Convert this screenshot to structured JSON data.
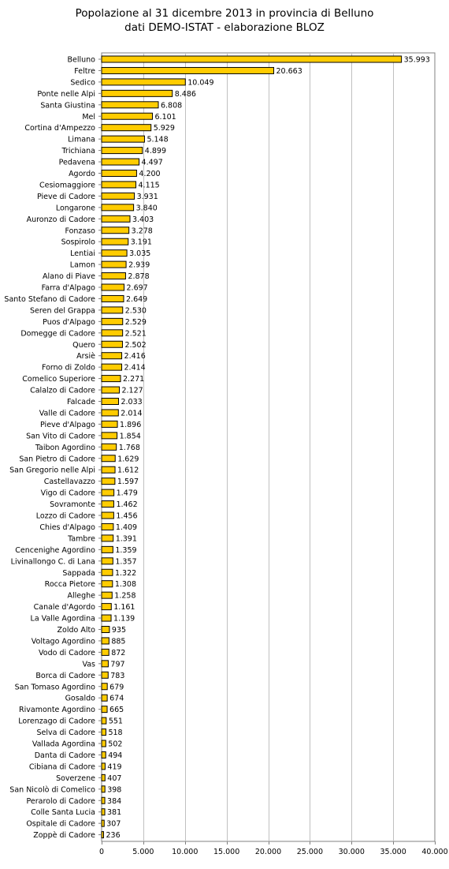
{
  "chart_data": {
    "type": "bar",
    "orientation": "horizontal",
    "title": "Popolazione al 31 dicembre 2013 in provincia di Belluno",
    "subtitle": "dati DEMO-ISTAT - elaborazione BLOZ",
    "xlabel": "",
    "ylabel": "",
    "xlim": [
      0,
      40000
    ],
    "xticks": [
      0,
      5000,
      10000,
      15000,
      20000,
      25000,
      30000,
      35000,
      40000
    ],
    "xtick_labels": [
      "0",
      "5.000",
      "10.000",
      "15.000",
      "20.000",
      "25.000",
      "30.000",
      "35.000",
      "40.000"
    ],
    "grid": true,
    "legend": "none",
    "bar_color": "#FFCC00",
    "bar_border_color": "#000000",
    "gridline_color": "#c0c0c0",
    "categories": [
      "Belluno",
      "Feltre",
      "Sedico",
      "Ponte nelle Alpi",
      "Santa Giustina",
      "Mel",
      "Cortina d'Ampezzo",
      "Limana",
      "Trichiana",
      "Pedavena",
      "Agordo",
      "Cesiomaggiore",
      "Pieve di Cadore",
      "Longarone",
      "Auronzo di Cadore",
      "Fonzaso",
      "Sospirolo",
      "Lentiai",
      "Lamon",
      "Alano di Piave",
      "Farra d'Alpago",
      "Santo Stefano di Cadore",
      "Seren del Grappa",
      "Puos d'Alpago",
      "Domegge di Cadore",
      "Quero",
      "Arsiè",
      "Forno di Zoldo",
      "Comelico Superiore",
      "Calalzo di Cadore",
      "Falcade",
      "Valle di Cadore",
      "Pieve d'Alpago",
      "San Vito di Cadore",
      "Taibon Agordino",
      "San Pietro di Cadore",
      "San Gregorio nelle Alpi",
      "Castellavazzo",
      "Vigo di Cadore",
      "Sovramonte",
      "Lozzo di Cadore",
      "Chies d'Alpago",
      "Tambre",
      "Cencenighe Agordino",
      "Livinallongo C. di Lana",
      "Sappada",
      "Rocca Pietore",
      "Alleghe",
      "Canale d'Agordo",
      "La Valle Agordina",
      "Zoldo Alto",
      "Voltago Agordino",
      "Vodo di Cadore",
      "Vas",
      "Borca di Cadore",
      "San Tomaso Agordino",
      "Gosaldo",
      "Rivamonte Agordino",
      "Lorenzago di Cadore",
      "Selva di Cadore",
      "Vallada Agordina",
      "Danta di Cadore",
      "Cibiana di Cadore",
      "Soverzene",
      "San Nicolò di Comelico",
      "Perarolo di Cadore",
      "Colle Santa Lucia",
      "Ospitale di Cadore",
      "Zoppè di Cadore"
    ],
    "values": [
      35993,
      20663,
      10049,
      8486,
      6808,
      6101,
      5929,
      5148,
      4899,
      4497,
      4200,
      4115,
      3931,
      3840,
      3403,
      3278,
      3191,
      3035,
      2939,
      2878,
      2697,
      2649,
      2530,
      2529,
      2521,
      2502,
      2416,
      2414,
      2271,
      2127,
      2033,
      2014,
      1896,
      1854,
      1768,
      1629,
      1612,
      1597,
      1479,
      1462,
      1456,
      1409,
      1391,
      1359,
      1357,
      1322,
      1308,
      1258,
      1161,
      1139,
      935,
      885,
      872,
      797,
      783,
      679,
      674,
      665,
      551,
      518,
      502,
      494,
      419,
      407,
      398,
      384,
      381,
      307,
      236
    ],
    "value_labels": [
      "35.993",
      "20.663",
      "10.049",
      "8.486",
      "6.808",
      "6.101",
      "5.929",
      "5.148",
      "4.899",
      "4.497",
      "4.200",
      "4.115",
      "3.931",
      "3.840",
      "3.403",
      "3.278",
      "3.191",
      "3.035",
      "2.939",
      "2.878",
      "2.697",
      "2.649",
      "2.530",
      "2.529",
      "2.521",
      "2.502",
      "2.416",
      "2.414",
      "2.271",
      "2.127",
      "2.033",
      "2.014",
      "1.896",
      "1.854",
      "1.768",
      "1.629",
      "1.612",
      "1.597",
      "1.479",
      "1.462",
      "1.456",
      "1.409",
      "1.391",
      "1.359",
      "1.357",
      "1.322",
      "1.308",
      "1.258",
      "1.161",
      "1.139",
      "935",
      "885",
      "872",
      "797",
      "783",
      "679",
      "674",
      "665",
      "551",
      "518",
      "502",
      "494",
      "419",
      "407",
      "398",
      "384",
      "381",
      "307",
      "236"
    ]
  }
}
